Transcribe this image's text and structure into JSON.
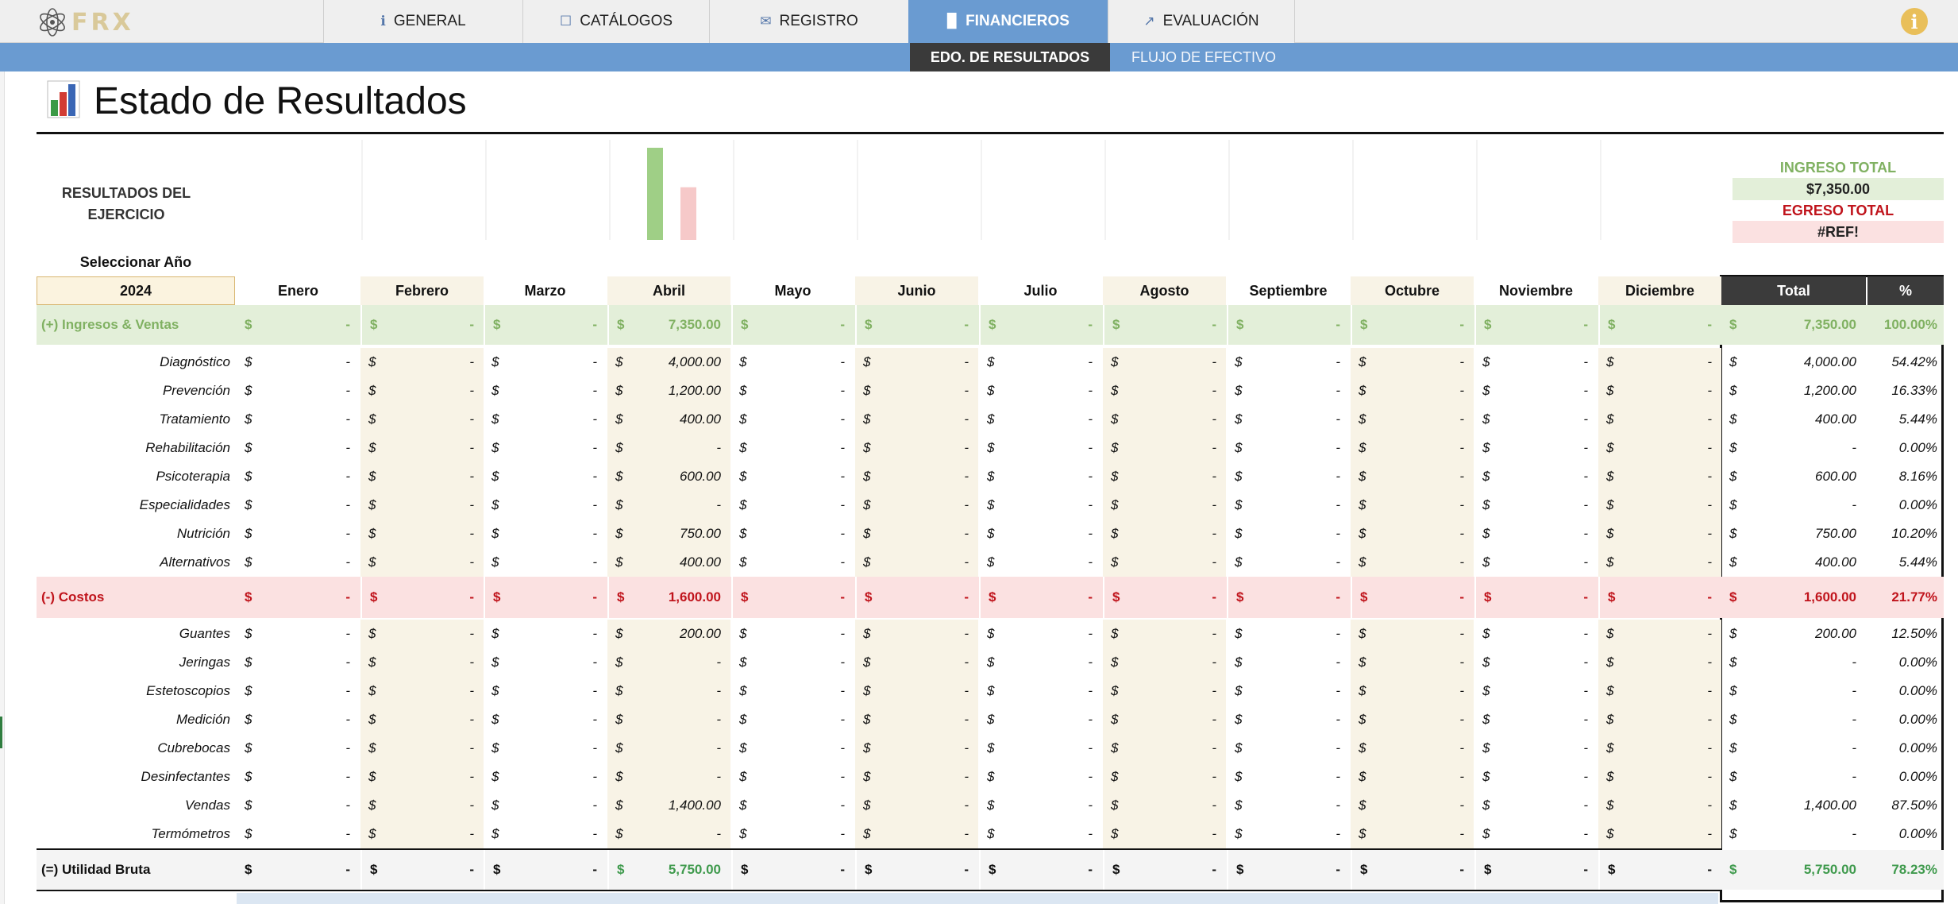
{
  "app": {
    "logo_text": "FRX",
    "tabs": [
      {
        "label": "GENERAL",
        "icon": "info-square-icon",
        "active": false
      },
      {
        "label": "CATÁLOGOS",
        "icon": "catalog-icon",
        "active": false
      },
      {
        "label": "REGISTRO",
        "icon": "register-icon",
        "active": false
      },
      {
        "label": "FINANCIEROS",
        "icon": "bar-chart-icon",
        "active": true
      },
      {
        "label": "EVALUACIÓN",
        "icon": "trend-chart-icon",
        "active": false
      }
    ],
    "subtabs": [
      {
        "label": "EDO. DE RESULTADOS",
        "active": true
      },
      {
        "label": "FLUJO DE EFECTIVO",
        "active": false
      }
    ],
    "info_icon": "i"
  },
  "page": {
    "title": "Estado de Resultados",
    "results_label_line1": "RESULTADOS DEL",
    "results_label_line2": "EJERCICIO",
    "select_year_label": "Seleccionar Año",
    "year": "2024"
  },
  "summary": {
    "income_label": "INGRESO TOTAL",
    "income_value": "$7,350.00",
    "expense_label": "EGRESO TOTAL",
    "expense_value": "#REF!"
  },
  "colors": {
    "income": "#80b162",
    "income_bg": "#e3efd9",
    "expense": "#c0141c",
    "expense_bg": "#fbe1e1",
    "accent": "#6a9bd1",
    "profit": "#3f9a4d"
  },
  "chart_data": {
    "type": "bar",
    "categories": [
      "Enero",
      "Febrero",
      "Marzo",
      "Abril",
      "Mayo",
      "Junio",
      "Julio",
      "Agosto",
      "Septiembre",
      "Octubre",
      "Noviembre",
      "Diciembre"
    ],
    "series": [
      {
        "values": [
          0,
          0,
          0,
          7350,
          0,
          0,
          0,
          0,
          0,
          0,
          0,
          0
        ],
        "color": "#9fcf86"
      },
      {
        "values": [
          0,
          0,
          0,
          4200,
          0,
          0,
          0,
          0,
          0,
          0,
          0,
          0
        ],
        "color": "#f6c9c9"
      }
    ],
    "ylim": [
      0,
      7350
    ],
    "grid": false,
    "legend": "none"
  },
  "table": {
    "months": [
      "Enero",
      "Febrero",
      "Marzo",
      "Abril",
      "Mayo",
      "Junio",
      "Julio",
      "Agosto",
      "Septiembre",
      "Octubre",
      "Noviembre",
      "Diciembre"
    ],
    "total_label": "Total",
    "pct_label": "%",
    "currency": "$",
    "rows": [
      {
        "label": "(+) Ingresos & Ventas",
        "type": "income",
        "values": [
          "-",
          "-",
          "-",
          "7,350.00",
          "-",
          "-",
          "-",
          "-",
          "-",
          "-",
          "-",
          "-"
        ],
        "total": "7,350.00",
        "pct": "100.00%"
      },
      {
        "label": "Diagnóstico",
        "type": "item",
        "values": [
          "-",
          "-",
          "-",
          "4,000.00",
          "-",
          "-",
          "-",
          "-",
          "-",
          "-",
          "-",
          "-"
        ],
        "total": "4,000.00",
        "pct": "54.42%"
      },
      {
        "label": "Prevención",
        "type": "item",
        "values": [
          "-",
          "-",
          "-",
          "1,200.00",
          "-",
          "-",
          "-",
          "-",
          "-",
          "-",
          "-",
          "-"
        ],
        "total": "1,200.00",
        "pct": "16.33%"
      },
      {
        "label": "Tratamiento",
        "type": "item",
        "values": [
          "-",
          "-",
          "-",
          "400.00",
          "-",
          "-",
          "-",
          "-",
          "-",
          "-",
          "-",
          "-"
        ],
        "total": "400.00",
        "pct": "5.44%"
      },
      {
        "label": "Rehabilitación",
        "type": "item",
        "values": [
          "-",
          "-",
          "-",
          "-",
          "-",
          "-",
          "-",
          "-",
          "-",
          "-",
          "-",
          "-"
        ],
        "total": "-",
        "pct": "0.00%"
      },
      {
        "label": "Psicoterapia",
        "type": "item",
        "values": [
          "-",
          "-",
          "-",
          "600.00",
          "-",
          "-",
          "-",
          "-",
          "-",
          "-",
          "-",
          "-"
        ],
        "total": "600.00",
        "pct": "8.16%"
      },
      {
        "label": "Especialidades",
        "type": "item",
        "values": [
          "-",
          "-",
          "-",
          "-",
          "-",
          "-",
          "-",
          "-",
          "-",
          "-",
          "-",
          "-"
        ],
        "total": "-",
        "pct": "0.00%"
      },
      {
        "label": "Nutrición",
        "type": "item",
        "values": [
          "-",
          "-",
          "-",
          "750.00",
          "-",
          "-",
          "-",
          "-",
          "-",
          "-",
          "-",
          "-"
        ],
        "total": "750.00",
        "pct": "10.20%"
      },
      {
        "label": "Alternativos",
        "type": "item",
        "values": [
          "-",
          "-",
          "-",
          "400.00",
          "-",
          "-",
          "-",
          "-",
          "-",
          "-",
          "-",
          "-"
        ],
        "total": "400.00",
        "pct": "5.44%"
      },
      {
        "label": "(-) Costos",
        "type": "cost",
        "values": [
          "-",
          "-",
          "-",
          "1,600.00",
          "-",
          "-",
          "-",
          "-",
          "-",
          "-",
          "-",
          "-"
        ],
        "total": "1,600.00",
        "pct": "21.77%"
      },
      {
        "label": "Guantes",
        "type": "item",
        "values": [
          "-",
          "-",
          "-",
          "200.00",
          "-",
          "-",
          "-",
          "-",
          "-",
          "-",
          "-",
          "-"
        ],
        "total": "200.00",
        "pct": "12.50%"
      },
      {
        "label": "Jeringas",
        "type": "item",
        "values": [
          "-",
          "-",
          "-",
          "-",
          "-",
          "-",
          "-",
          "-",
          "-",
          "-",
          "-",
          "-"
        ],
        "total": "-",
        "pct": "0.00%"
      },
      {
        "label": "Estetoscopios",
        "type": "item",
        "values": [
          "-",
          "-",
          "-",
          "-",
          "-",
          "-",
          "-",
          "-",
          "-",
          "-",
          "-",
          "-"
        ],
        "total": "-",
        "pct": "0.00%"
      },
      {
        "label": "Medición",
        "type": "item",
        "values": [
          "-",
          "-",
          "-",
          "-",
          "-",
          "-",
          "-",
          "-",
          "-",
          "-",
          "-",
          "-"
        ],
        "total": "-",
        "pct": "0.00%"
      },
      {
        "label": "Cubrebocas",
        "type": "item",
        "values": [
          "-",
          "-",
          "-",
          "-",
          "-",
          "-",
          "-",
          "-",
          "-",
          "-",
          "-",
          "-"
        ],
        "total": "-",
        "pct": "0.00%"
      },
      {
        "label": "Desinfectantes",
        "type": "item",
        "values": [
          "-",
          "-",
          "-",
          "-",
          "-",
          "-",
          "-",
          "-",
          "-",
          "-",
          "-",
          "-"
        ],
        "total": "-",
        "pct": "0.00%"
      },
      {
        "label": "Vendas",
        "type": "item",
        "values": [
          "-",
          "-",
          "-",
          "1,400.00",
          "-",
          "-",
          "-",
          "-",
          "-",
          "-",
          "-",
          "-"
        ],
        "total": "1,400.00",
        "pct": "87.50%"
      },
      {
        "label": "Termómetros",
        "type": "item",
        "values": [
          "-",
          "-",
          "-",
          "-",
          "-",
          "-",
          "-",
          "-",
          "-",
          "-",
          "-",
          "-"
        ],
        "total": "-",
        "pct": "0.00%"
      },
      {
        "label": "(=) Utilidad Bruta",
        "type": "profit",
        "values": [
          "-",
          "-",
          "-",
          "5,750.00",
          "-",
          "-",
          "-",
          "-",
          "-",
          "-",
          "-",
          "-"
        ],
        "total": "5,750.00",
        "pct": "78.23%"
      }
    ]
  }
}
